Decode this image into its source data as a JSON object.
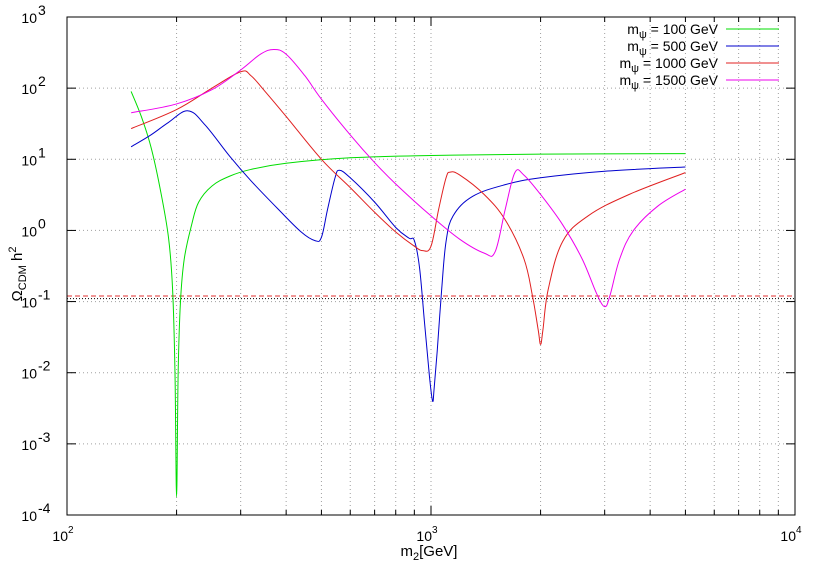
{
  "chart_data": {
    "type": "line",
    "xlabel_base": "m",
    "xlabel_sub": "2",
    "xlabel_rest": "[GeV]",
    "ylabel_main": "Ω",
    "ylabel_sub": "CDM",
    "ylabel_rest": " h",
    "ylabel_sup": "2",
    "x_scale": "log",
    "y_scale": "log",
    "xlim": [
      100,
      10000
    ],
    "ylim": [
      0.0001,
      1000
    ],
    "x_ticks": [
      {
        "base": "10",
        "exp": "2",
        "value": 100
      },
      {
        "base": "10",
        "exp": "3",
        "value": 1000
      },
      {
        "base": "10",
        "exp": "4",
        "value": 10000
      }
    ],
    "y_ticks": [
      {
        "base": "10",
        "exp": "-4",
        "value": 0.0001
      },
      {
        "base": "10",
        "exp": "-3",
        "value": 0.001
      },
      {
        "base": "10",
        "exp": "-2",
        "value": 0.01
      },
      {
        "base": "10",
        "exp": "-1",
        "value": 0.1
      },
      {
        "base": "10",
        "exp": "0",
        "value": 1
      },
      {
        "base": "10",
        "exp": "1",
        "value": 10
      },
      {
        "base": "10",
        "exp": "2",
        "value": 100
      },
      {
        "base": "10",
        "exp": "3",
        "value": 1000
      }
    ],
    "grid": true,
    "legend_position": "top-right",
    "reference_lines": [
      {
        "y": 0.11,
        "color": "#000000",
        "style": "dotted"
      },
      {
        "y": 0.12,
        "color": "#e03030",
        "style": "dashed"
      }
    ],
    "series": [
      {
        "name_pre": "m",
        "name_sub": "ψ",
        "name_post": " = 100 GeV",
        "color": "#00dd00",
        "x": [
          150,
          160,
          170,
          180,
          190,
          195,
          198,
          200,
          202,
          205,
          210,
          220,
          230,
          250,
          280,
          320,
          400,
          600,
          1000,
          2000,
          5000
        ],
        "y": [
          90,
          40,
          15,
          4,
          0.8,
          0.15,
          0.01,
          0.00018,
          0.01,
          0.1,
          0.4,
          1.2,
          2.5,
          4.2,
          5.8,
          7.2,
          8.8,
          10.5,
          11.3,
          11.8,
          12
        ]
      },
      {
        "name_pre": "m",
        "name_sub": "ψ",
        "name_post": " = 500 GeV",
        "color": "#0000cc",
        "x": [
          150,
          170,
          190,
          215,
          240,
          280,
          320,
          380,
          440,
          480,
          500,
          520,
          545,
          560,
          600,
          700,
          800,
          870,
          900,
          930,
          960,
          990,
          1010,
          1020,
          1040,
          1070,
          1100,
          1150,
          1300,
          1600,
          2000,
          3000,
          5000
        ],
        "y": [
          15,
          22,
          33,
          48,
          30,
          11,
          5,
          2,
          0.95,
          0.72,
          0.8,
          2,
          5.5,
          7,
          5.5,
          2.5,
          1.1,
          0.78,
          0.72,
          0.3,
          0.05,
          0.009,
          0.004,
          0.006,
          0.02,
          0.15,
          0.7,
          1.6,
          3,
          4.4,
          5.5,
          6.8,
          7.8
        ]
      },
      {
        "name_pre": "m",
        "name_sub": "ψ",
        "name_post": " = 1000 GeV",
        "color": "#e02020",
        "x": [
          150,
          200,
          250,
          300,
          320,
          350,
          400,
          500,
          600,
          700,
          800,
          900,
          950,
          1000,
          1050,
          1100,
          1130,
          1200,
          1400,
          1600,
          1800,
          1900,
          1970,
          2000,
          2030,
          2100,
          2300,
          2700,
          3500,
          5000
        ],
        "y": [
          27,
          50,
          100,
          170,
          150,
          90,
          40,
          10,
          4,
          1.8,
          0.95,
          0.6,
          0.52,
          0.6,
          2,
          5.5,
          6.6,
          6,
          3.2,
          1.4,
          0.4,
          0.12,
          0.04,
          0.025,
          0.04,
          0.15,
          0.7,
          1.6,
          3.2,
          6.5
        ]
      },
      {
        "name_pre": "m",
        "name_sub": "ψ",
        "name_post": " = 1500 GeV",
        "color": "#ee00ee",
        "x": [
          150,
          200,
          250,
          300,
          340,
          370,
          400,
          450,
          500,
          600,
          700,
          800,
          1000,
          1200,
          1400,
          1500,
          1600,
          1700,
          1800,
          2000,
          2300,
          2600,
          2850,
          3000,
          3100,
          3300,
          3600,
          4200,
          5000
        ],
        "y": [
          45,
          60,
          95,
          180,
          300,
          350,
          300,
          150,
          70,
          22,
          9,
          4.5,
          1.6,
          0.75,
          0.48,
          0.5,
          2,
          6.5,
          6,
          3.2,
          1.2,
          0.4,
          0.13,
          0.085,
          0.12,
          0.4,
          1,
          2.2,
          3.8
        ]
      }
    ]
  }
}
